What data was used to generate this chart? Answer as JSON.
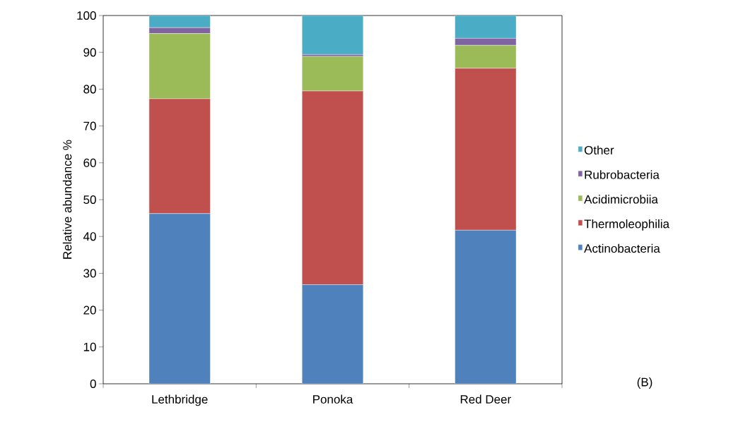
{
  "chart_data": {
    "type": "bar",
    "stacked": true,
    "ylabel": "Relative abundance %",
    "categories": [
      "Lethbridge",
      "Ponoka",
      "Red Deer"
    ],
    "series": [
      {
        "name": "Actinobacteria",
        "color": "#4f81bd",
        "values": [
          46.2,
          26.9,
          41.7
        ]
      },
      {
        "name": "Thermoleophilia",
        "color": "#c0504d",
        "values": [
          31.2,
          52.6,
          44.0
        ]
      },
      {
        "name": "Acidimicrobiia",
        "color": "#9bbb59",
        "values": [
          17.7,
          9.4,
          6.2
        ]
      },
      {
        "name": "Rubrobacteria",
        "color": "#8064a2",
        "values": [
          1.6,
          0.5,
          1.9
        ]
      },
      {
        "name": "Other",
        "color": "#4bacc6",
        "values": [
          3.3,
          10.6,
          6.2
        ]
      }
    ],
    "ylim": [
      0,
      100
    ],
    "yticks": [
      0,
      10,
      20,
      30,
      40,
      50,
      60,
      70,
      80,
      90,
      100
    ],
    "legend": "right",
    "annotations": [
      "(B)"
    ]
  }
}
